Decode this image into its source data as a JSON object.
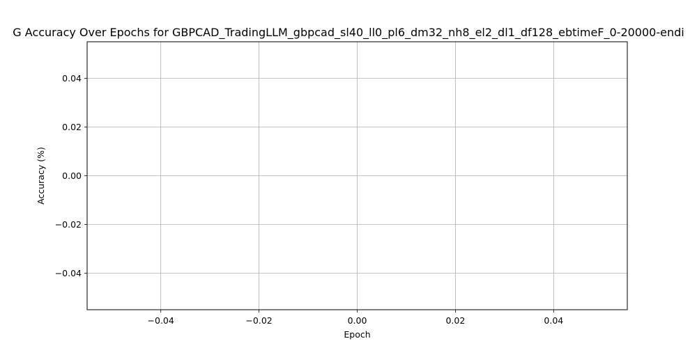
{
  "chart_data": {
    "type": "line",
    "title": "G Accuracy Over Epochs for GBPCAD_TradingLLM_gbpcad_sl40_ll0_pl6_dm32_nh8_el2_dl1_df128_ebtimeF_0-20000-endi",
    "xlabel": "Epoch",
    "ylabel": "Accuracy (%)",
    "xlim": [
      -0.055,
      0.055
    ],
    "ylim": [
      -0.055,
      0.055
    ],
    "x_ticks": [
      -0.04,
      -0.02,
      0.0,
      0.02,
      0.04
    ],
    "x_tick_labels": [
      "−0.04",
      "−0.02",
      "0.00",
      "0.02",
      "0.04"
    ],
    "y_ticks": [
      0.04,
      0.02,
      0.0,
      -0.02,
      -0.04
    ],
    "y_tick_labels": [
      "0.04",
      "0.02",
      "0.00",
      "−0.02",
      "−0.04"
    ],
    "grid": true,
    "series": [
      {
        "x": [],
        "y": []
      }
    ],
    "colors": {
      "grid": "#b0b0b0",
      "axes": "#000000",
      "line": "#1f77b4"
    }
  }
}
